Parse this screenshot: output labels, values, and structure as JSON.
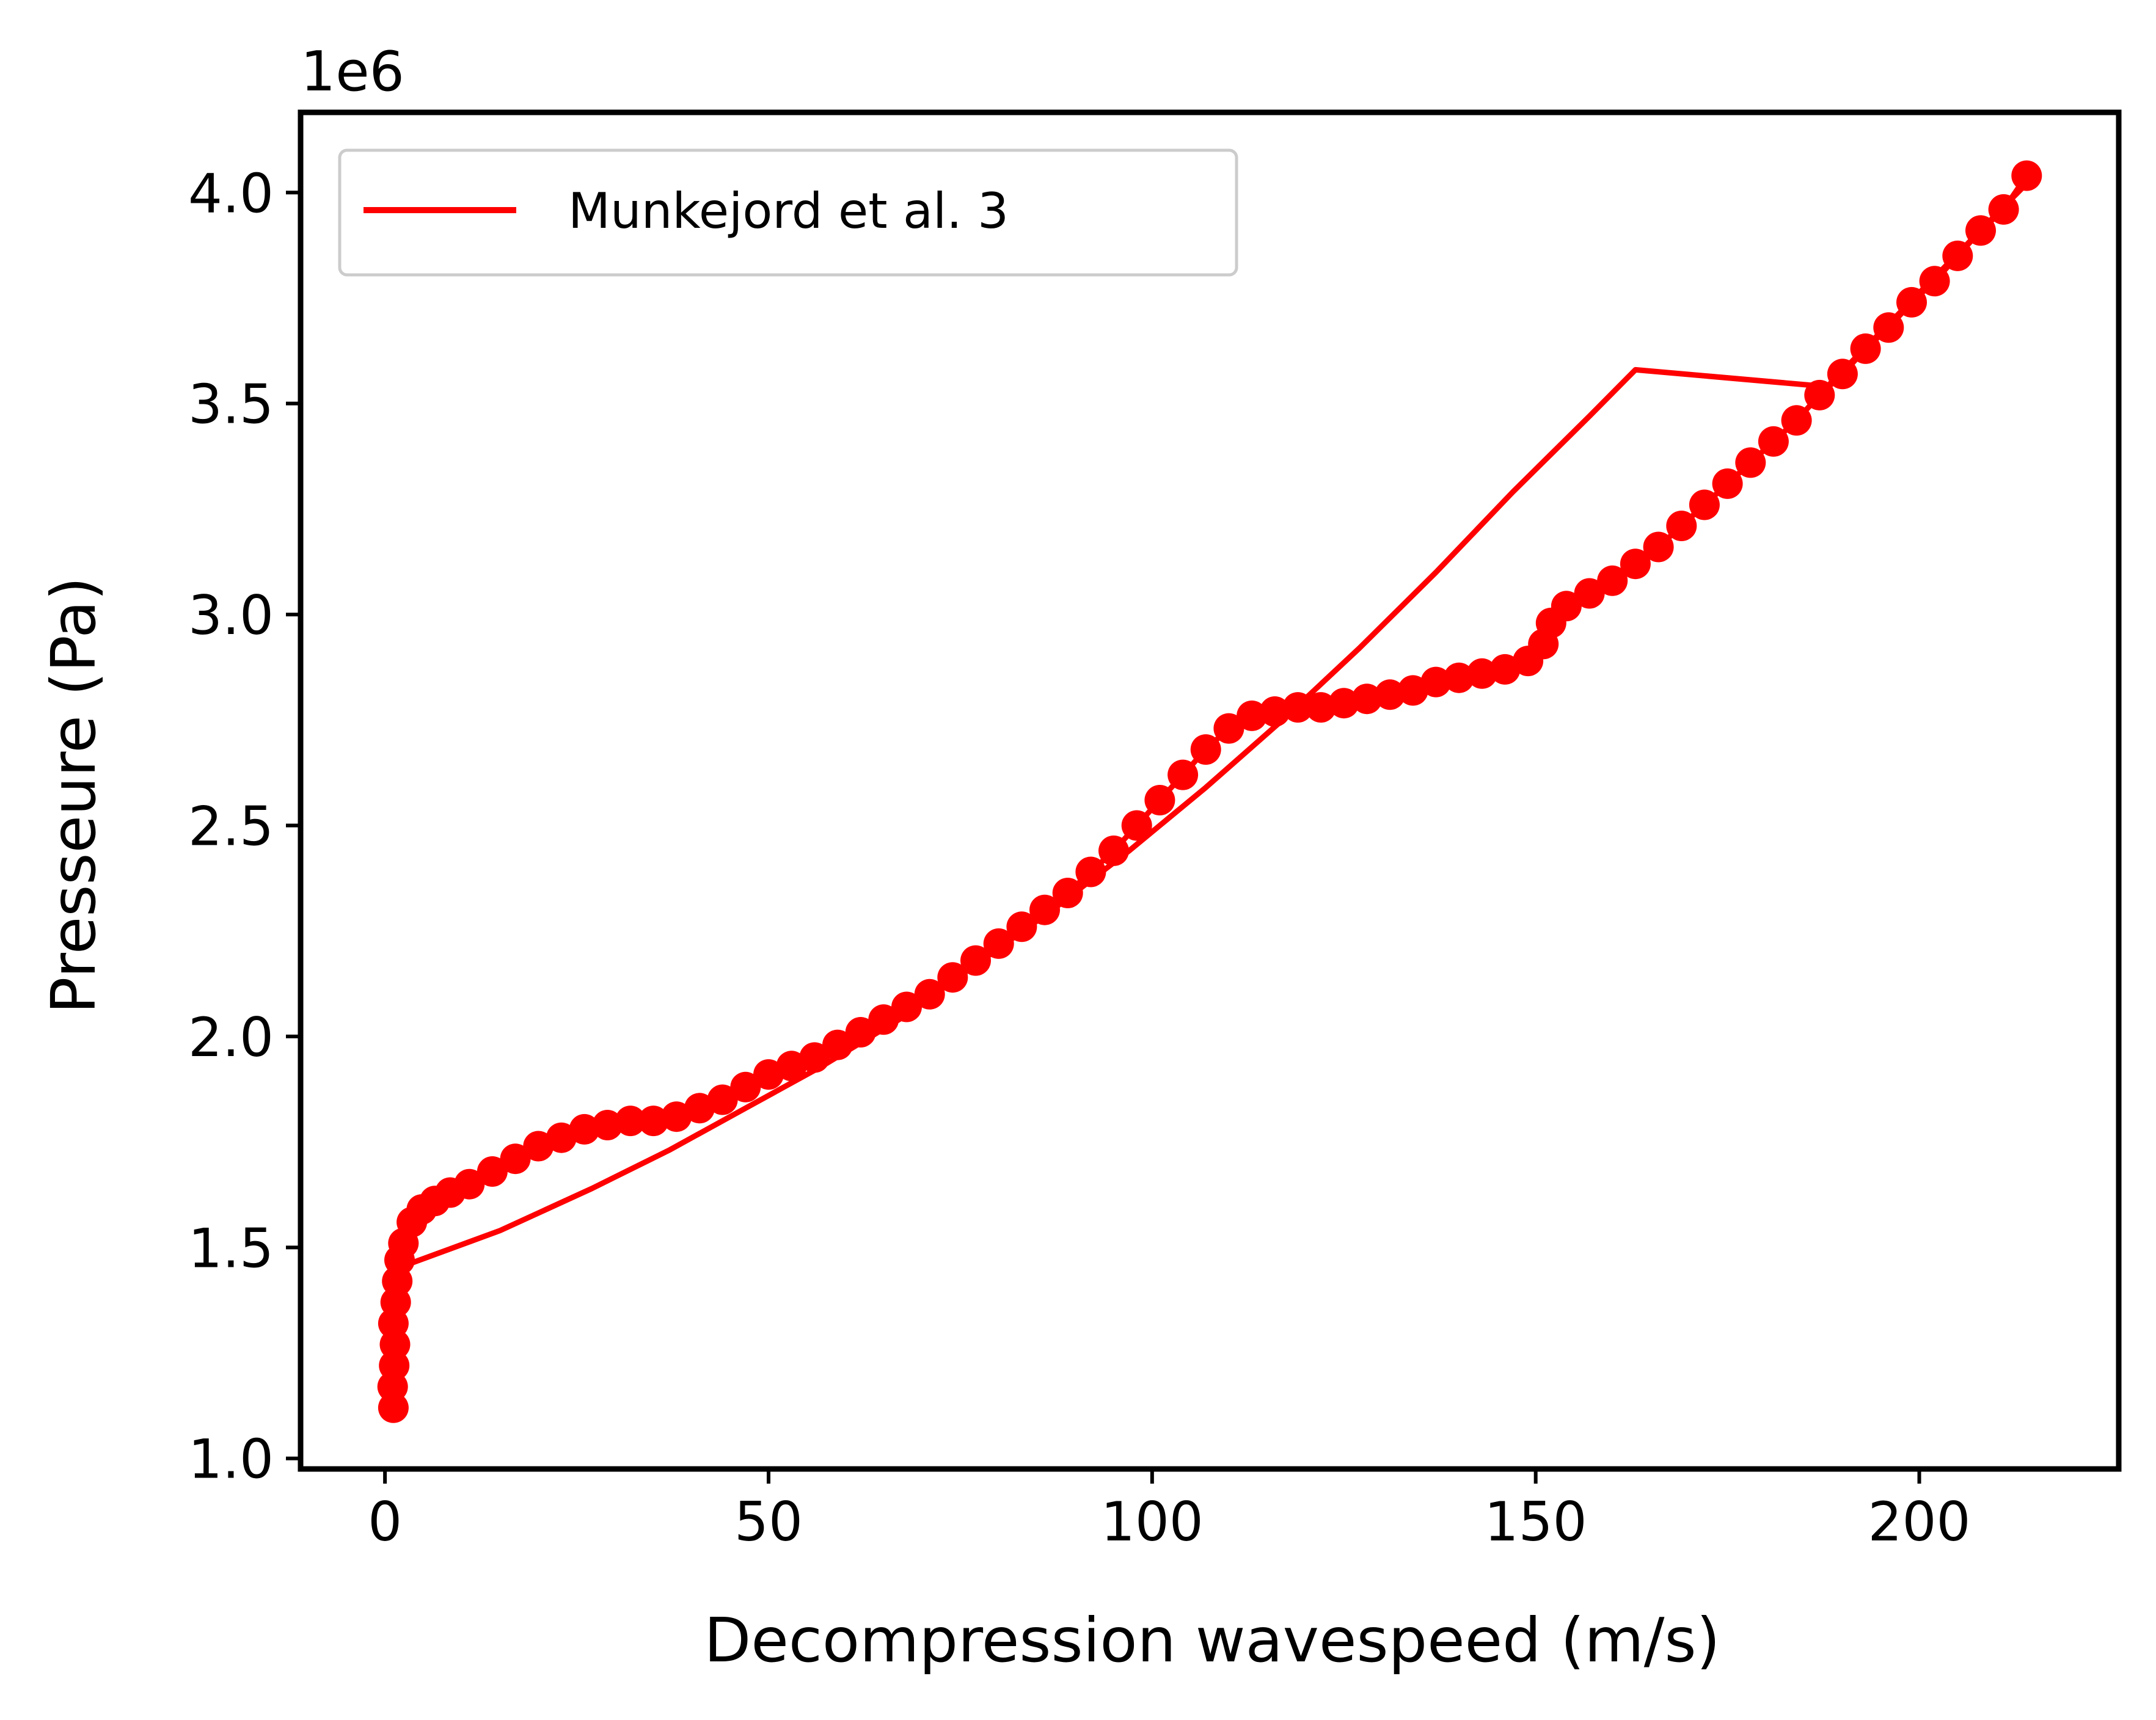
{
  "chart_data": {
    "type": "line",
    "xlabel": "Decompression wavespeed (m/s)",
    "ylabel": "Presseure (Pa)",
    "y_offset_label": "1e6",
    "xlim": [
      -11,
      226
    ],
    "ylim": [
      0.975,
      4.19
    ],
    "y_scale_factor": 1000000,
    "x_ticks": [
      0,
      50,
      100,
      150,
      200
    ],
    "x_tick_labels": [
      "0",
      "50",
      "100",
      "150",
      "200"
    ],
    "y_ticks": [
      1.0,
      1.5,
      2.0,
      2.5,
      3.0,
      3.5,
      4.0
    ],
    "y_tick_labels": [
      "1.0",
      "1.5",
      "2.0",
      "2.5",
      "3.0",
      "3.5",
      "4.0"
    ],
    "grid": false,
    "legend": {
      "placement": "upper left",
      "entries": [
        "Munkejord et al. 3"
      ]
    },
    "colors": {
      "series": "#ff0000",
      "axes": "#000000",
      "legend_border": "#cccccc"
    },
    "series": [
      {
        "name": "Munkejord et al. 3",
        "style": "line",
        "x": [
          1.5,
          15,
          27,
          37,
          47,
          57,
          67,
          77,
          87,
          97,
          107,
          117,
          127,
          137,
          147,
          157,
          163,
          188,
          215
        ],
        "y": [
          1.45,
          1.54,
          1.64,
          1.73,
          1.83,
          1.93,
          2.04,
          2.17,
          2.3,
          2.44,
          2.59,
          2.75,
          2.92,
          3.1,
          3.29,
          3.47,
          3.58,
          3.54,
          4.04
        ]
      },
      {
        "style": "markers",
        "x": [
          1.1,
          1.0,
          1.2,
          1.3,
          1.1,
          1.4,
          1.6,
          1.9,
          2.4,
          3.5,
          4.8,
          6.5,
          8.5,
          11,
          14,
          17,
          20,
          23,
          26,
          29,
          32,
          35,
          38,
          41,
          44,
          47,
          50,
          53,
          56,
          59,
          62,
          65,
          68,
          71,
          74,
          77,
          80,
          83,
          86,
          89,
          92,
          95,
          98,
          101,
          104,
          107,
          110,
          113,
          116,
          119,
          122,
          125,
          128,
          131,
          134,
          137,
          140,
          143,
          146,
          149,
          151,
          152,
          154,
          157,
          160,
          163,
          166,
          169,
          172,
          175,
          178,
          181,
          184,
          187,
          190,
          193,
          196,
          199,
          202,
          205,
          208,
          211,
          214
        ],
        "y": [
          1.12,
          1.17,
          1.22,
          1.27,
          1.32,
          1.37,
          1.42,
          1.47,
          1.51,
          1.56,
          1.59,
          1.61,
          1.63,
          1.65,
          1.68,
          1.71,
          1.74,
          1.76,
          1.78,
          1.79,
          1.8,
          1.8,
          1.81,
          1.83,
          1.85,
          1.88,
          1.91,
          1.93,
          1.95,
          1.98,
          2.01,
          2.04,
          2.07,
          2.1,
          2.14,
          2.18,
          2.22,
          2.26,
          2.3,
          2.34,
          2.39,
          2.44,
          2.5,
          2.56,
          2.62,
          2.68,
          2.73,
          2.76,
          2.77,
          2.78,
          2.78,
          2.79,
          2.8,
          2.81,
          2.82,
          2.84,
          2.85,
          2.86,
          2.87,
          2.89,
          2.93,
          2.98,
          3.02,
          3.05,
          3.08,
          3.12,
          3.16,
          3.21,
          3.26,
          3.31,
          3.36,
          3.41,
          3.46,
          3.52,
          3.57,
          3.63,
          3.68,
          3.74,
          3.79,
          3.85,
          3.91,
          3.96,
          4.04
        ]
      }
    ]
  }
}
